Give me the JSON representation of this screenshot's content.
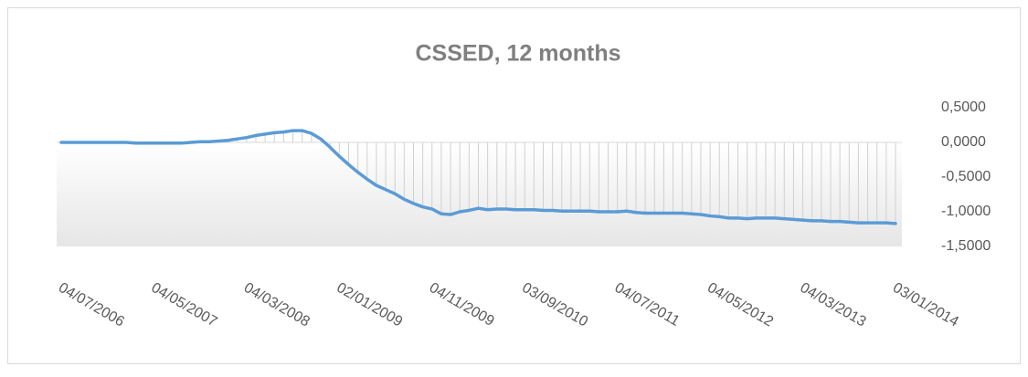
{
  "chart_data": {
    "type": "line",
    "title": "CSSED, 12 months",
    "categories": [
      "04/07/2006",
      null,
      null,
      null,
      null,
      null,
      null,
      null,
      null,
      null,
      "04/05/2007",
      null,
      null,
      null,
      null,
      null,
      null,
      null,
      null,
      null,
      "04/03/2008",
      null,
      null,
      null,
      null,
      null,
      null,
      null,
      null,
      null,
      "02/01/2009",
      null,
      null,
      null,
      null,
      null,
      null,
      null,
      null,
      null,
      "04/11/2009",
      null,
      null,
      null,
      null,
      null,
      null,
      null,
      null,
      null,
      "03/09/2010",
      null,
      null,
      null,
      null,
      null,
      null,
      null,
      null,
      null,
      "04/07/2011",
      null,
      null,
      null,
      null,
      null,
      null,
      null,
      null,
      null,
      "04/05/2012",
      null,
      null,
      null,
      null,
      null,
      null,
      null,
      null,
      null,
      "04/03/2013",
      null,
      null,
      null,
      null,
      null,
      null,
      null,
      null,
      null,
      "03/01/2014"
    ],
    "series": [
      {
        "name": "CSSED",
        "color": "#5b9bd5",
        "values": [
          0,
          0,
          0,
          0,
          0,
          0,
          0,
          0,
          -0.01,
          -0.01,
          -0.01,
          -0.01,
          -0.01,
          -0.01,
          0,
          0.01,
          0.01,
          0.02,
          0.03,
          0.05,
          0.07,
          0.1,
          0.12,
          0.14,
          0.15,
          0.17,
          0.17,
          0.13,
          0.05,
          -0.07,
          -0.2,
          -0.32,
          -0.43,
          -0.53,
          -0.62,
          -0.68,
          -0.74,
          -0.82,
          -0.88,
          -0.93,
          -0.96,
          -1.03,
          -1.04,
          -1.0,
          -0.98,
          -0.95,
          -0.97,
          -0.96,
          -0.96,
          -0.97,
          -0.97,
          -0.97,
          -0.98,
          -0.98,
          -0.99,
          -0.99,
          -0.99,
          -0.99,
          -1.0,
          -1.0,
          -1.0,
          -0.99,
          -1.01,
          -1.02,
          -1.02,
          -1.02,
          -1.02,
          -1.02,
          -1.03,
          -1.04,
          -1.06,
          -1.07,
          -1.09,
          -1.09,
          -1.1,
          -1.09,
          -1.09,
          -1.09,
          -1.1,
          -1.11,
          -1.12,
          -1.13,
          -1.13,
          -1.14,
          -1.14,
          -1.15,
          -1.16,
          -1.16,
          -1.16,
          -1.16,
          -1.17
        ]
      }
    ],
    "ylim": [
      -1.5,
      0.5
    ],
    "yticks": [
      {
        "value": 0.5,
        "label": "0,5000"
      },
      {
        "value": 0,
        "label": "0,0000"
      },
      {
        "value": -0.5,
        "label": "-0,5000"
      },
      {
        "value": -1,
        "label": "-1,0000"
      },
      {
        "value": -1.5,
        "label": "-1,5000"
      }
    ]
  }
}
